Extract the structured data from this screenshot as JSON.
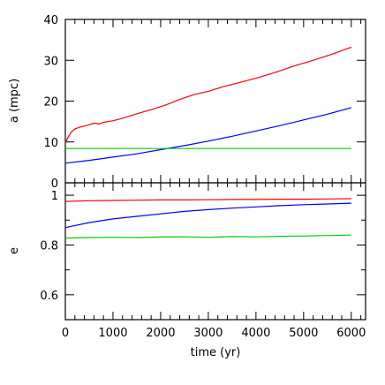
{
  "chart_data": [
    {
      "type": "line",
      "panel": "top",
      "xlabel": "",
      "ylabel": "a (mpc)",
      "xlim": [
        0,
        6300
      ],
      "ylim": [
        0,
        40
      ],
      "yticks": [
        0,
        10,
        20,
        30,
        40
      ],
      "xticks_labeled": false,
      "grid": false,
      "series": [
        {
          "color": "#ff0000",
          "x": [
            0,
            60,
            120,
            200,
            300,
            400,
            500,
            600,
            700,
            800,
            1000,
            1200,
            1500,
            1800,
            2100,
            2400,
            2700,
            3000,
            3300,
            3600,
            4000,
            4400,
            4800,
            5200,
            5600,
            6000
          ],
          "y": [
            9.8,
            11.2,
            12.4,
            13.2,
            13.6,
            13.9,
            14.2,
            14.6,
            14.4,
            14.8,
            15.2,
            15.8,
            16.9,
            17.9,
            19.0,
            20.4,
            21.6,
            22.4,
            23.5,
            24.4,
            25.6,
            27.0,
            28.6,
            30.0,
            31.5,
            33.2
          ]
        },
        {
          "color": "#0000ff",
          "x": [
            0,
            500,
            1000,
            1500,
            2000,
            2500,
            3000,
            3500,
            4000,
            4500,
            5000,
            5500,
            6000
          ],
          "y": [
            4.8,
            5.5,
            6.3,
            7.1,
            8.1,
            9.1,
            10.2,
            11.4,
            12.7,
            14.0,
            15.4,
            16.8,
            18.4
          ]
        },
        {
          "color": "#00cc00",
          "x": [
            0,
            6000
          ],
          "y": [
            8.4,
            8.4
          ]
        }
      ]
    },
    {
      "type": "line",
      "panel": "bottom",
      "xlabel": "time (yr)",
      "ylabel": "e",
      "xlim": [
        0,
        6300
      ],
      "ylim": [
        0.5,
        1.05
      ],
      "yticks": [
        0.6,
        0.8,
        1.0
      ],
      "ytick_labels": [
        "0.6",
        "0.8",
        "1"
      ],
      "xticks": [
        0,
        1000,
        2000,
        3000,
        4000,
        5000,
        6000
      ],
      "grid": false,
      "series": [
        {
          "color": "#ff0000",
          "x": [
            0,
            500,
            1000,
            1500,
            2000,
            2500,
            3000,
            3500,
            4000,
            4500,
            5000,
            5500,
            6000
          ],
          "y": [
            0.975,
            0.978,
            0.979,
            0.98,
            0.981,
            0.981,
            0.982,
            0.983,
            0.983,
            0.984,
            0.984,
            0.985,
            0.986
          ]
        },
        {
          "color": "#0000ff",
          "x": [
            0,
            500,
            1000,
            1500,
            2000,
            2500,
            3000,
            3500,
            4000,
            4500,
            5000,
            5500,
            6000
          ],
          "y": [
            0.87,
            0.89,
            0.905,
            0.915,
            0.925,
            0.935,
            0.942,
            0.948,
            0.953,
            0.958,
            0.962,
            0.965,
            0.968
          ]
        },
        {
          "color": "#00cc00",
          "x": [
            0,
            500,
            1000,
            1500,
            2000,
            2500,
            3000,
            3500,
            4000,
            4500,
            5000,
            5500,
            6000
          ],
          "y": [
            0.828,
            0.83,
            0.831,
            0.83,
            0.832,
            0.833,
            0.831,
            0.834,
            0.833,
            0.835,
            0.836,
            0.838,
            0.84
          ]
        }
      ]
    }
  ]
}
